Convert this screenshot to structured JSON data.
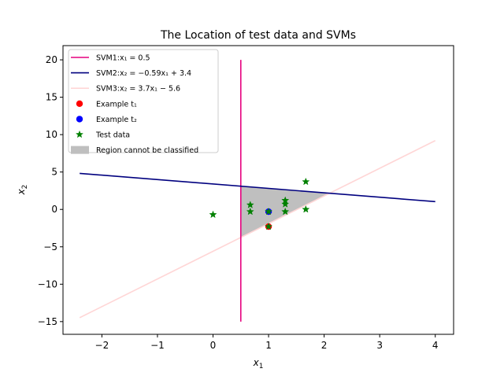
{
  "chart_data": {
    "type": "line",
    "title": "The Location of test data and SVMs",
    "xlabel": "x",
    "xlabel_sub": "1",
    "ylabel": "x",
    "ylabel_sub": "2",
    "xlim": [
      -2.7,
      4.33
    ],
    "ylim": [
      -16.7,
      21.9
    ],
    "xticks": [
      -2,
      -1,
      0,
      1,
      2,
      3,
      4
    ],
    "yticks": [
      -15,
      -10,
      -5,
      0,
      5,
      10,
      15,
      20
    ],
    "grid": false,
    "legend_position": "top-left",
    "lines": [
      {
        "name": "SVM1:x₁ = 0.5",
        "color": "#e6007e",
        "points": [
          [
            0.5,
            -15
          ],
          [
            0.5,
            20
          ]
        ]
      },
      {
        "name": "SVM2:x₂ = −0.59x₁ + 3.4",
        "color": "#00007f",
        "points": [
          [
            -2.4,
            4.82
          ],
          [
            4,
            1.04
          ]
        ]
      },
      {
        "name": "SVM3:x₂ = 3.7x₁ − 5.6",
        "color": "#ffd6d6",
        "points": [
          [
            -2.4,
            -14.48
          ],
          [
            4,
            9.2
          ]
        ]
      }
    ],
    "region": {
      "name": "Region cannot be classified",
      "color": "#bfbfbf",
      "points": [
        [
          0.5,
          3.105
        ],
        [
          0.5,
          -3.75
        ],
        [
          2.088,
          2.168
        ]
      ]
    },
    "example_points": [
      {
        "name": "Example t₁",
        "color": "#ff0000",
        "x": 1.0,
        "y": -2.3
      },
      {
        "name": "Example t₂",
        "color": "#0000ff",
        "x": 1.0,
        "y": -0.3
      }
    ],
    "test_data": {
      "name": "Test data",
      "color": "#008000",
      "points": [
        [
          0.0,
          -0.7
        ],
        [
          0.67,
          0.6
        ],
        [
          0.67,
          -0.3
        ],
        [
          1.0,
          -0.3
        ],
        [
          1.0,
          -2.3
        ],
        [
          1.3,
          1.2
        ],
        [
          1.3,
          0.7
        ],
        [
          1.3,
          -0.3
        ],
        [
          1.67,
          3.7
        ],
        [
          1.67,
          0.0
        ]
      ]
    }
  }
}
